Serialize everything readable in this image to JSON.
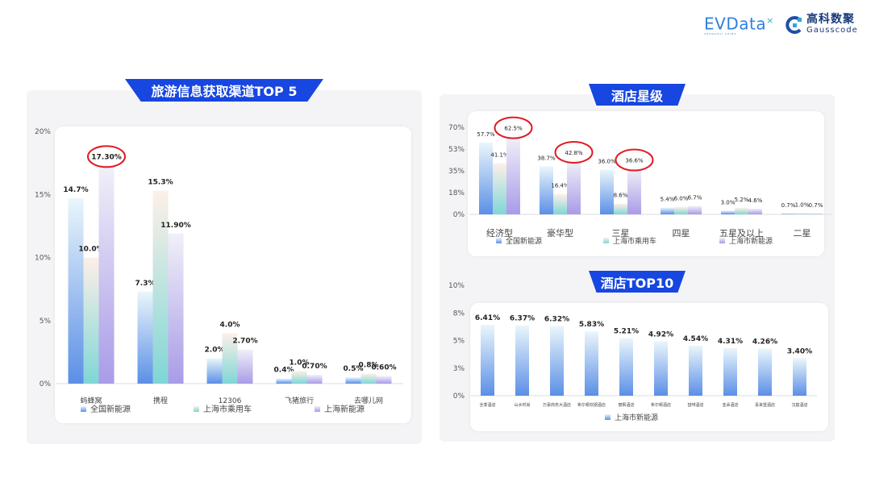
{
  "header": {
    "logo_evdata": "EVData",
    "logo_evdata_sub": "SHANGHAI CHINA",
    "logo_gauss_cn": "高科数聚",
    "logo_gauss_en": "Gausscode"
  },
  "colors": {
    "banner": "#1746e0",
    "highlight": "#e01b24",
    "series": [
      "#5b8fe6",
      "#7fd6d6",
      "#a99be8"
    ]
  },
  "chart_data": [
    {
      "type": "bar",
      "title": "旅游信息获取渠道TOP 5",
      "categories": [
        "蚂蜂窝",
        "携程",
        "12306",
        "飞猪旅行",
        "去哪儿网"
      ],
      "ylim": [
        0,
        20
      ],
      "yticks": [
        0,
        5,
        10,
        15,
        20
      ],
      "ytick_labels": [
        "0%",
        "5%",
        "10%",
        "15%",
        "20%"
      ],
      "legend": "bottom",
      "series": [
        {
          "name": "全国新能源",
          "values": [
            14.7,
            7.3,
            2.0,
            0.4,
            0.5
          ],
          "labels": [
            "14.7%",
            "7.3%",
            "2.0%",
            "0.4%",
            "0.5%"
          ]
        },
        {
          "name": "上海市乘用车",
          "values": [
            10.0,
            15.3,
            4.0,
            1.0,
            0.8
          ],
          "labels": [
            "10.0%",
            "15.3%",
            "4.0%",
            "1.0%",
            "0.8%"
          ]
        },
        {
          "name": "上海新能源",
          "values": [
            17.3,
            11.9,
            2.7,
            0.7,
            0.6
          ],
          "labels": [
            "17.30%",
            "11.90%",
            "2.70%",
            "0.70%",
            "0.60%"
          ]
        }
      ],
      "highlighted": [
        {
          "series": 2,
          "category": 0
        }
      ]
    },
    {
      "type": "bar",
      "title": "酒店星级",
      "categories": [
        "经济型",
        "豪华型",
        "三星",
        "四星",
        "五星及以上",
        "二星"
      ],
      "ylim": [
        0,
        70
      ],
      "yticks": [
        0,
        17.5,
        35,
        52.5,
        70
      ],
      "ytick_labels": [
        "0%",
        "18%",
        "35%",
        "53%",
        "70%"
      ],
      "legend": "bottom",
      "series": [
        {
          "name": "全国新能源",
          "values": [
            57.7,
            38.7,
            36.0,
            5.4,
            3.0,
            0.7
          ],
          "labels": [
            "57.7%",
            "38.7%",
            "36.0%",
            "5.4%",
            "3.0%",
            "0.7%"
          ]
        },
        {
          "name": "上海市乘用车",
          "values": [
            41.1,
            16.4,
            8.6,
            6.0,
            5.2,
            1.0
          ],
          "labels": [
            "41.1%",
            "16.4%",
            "8.6%",
            "6.0%",
            "5.2%",
            "1.0%"
          ]
        },
        {
          "name": "上海市新能源",
          "values": [
            62.5,
            42.8,
            36.6,
            6.7,
            4.6,
            0.7
          ],
          "labels": [
            "62.5%",
            "42.8%",
            "36.6%",
            "6.7%",
            "4.6%",
            "0.7%"
          ]
        }
      ],
      "highlighted": [
        {
          "series": 2,
          "category": 0
        },
        {
          "series": 2,
          "category": 1
        },
        {
          "series": 2,
          "category": 2
        }
      ]
    },
    {
      "type": "bar",
      "title": "酒店TOP10",
      "categories": [
        "全季酒店",
        "山水时尚",
        "万豪商务大酒店",
        "希尔顿欢朋酒店",
        "丽枫酒店",
        "希尔顿酒店",
        "喆啡酒店",
        "亚朵酒店",
        "喜来登酒店",
        "汉庭酒店"
      ],
      "ylim": [
        0,
        10
      ],
      "yticks": [
        0,
        2.5,
        5,
        7.5,
        10
      ],
      "ytick_labels": [
        "0%",
        "3%",
        "5%",
        "8%",
        "10%"
      ],
      "legend": "bottom",
      "series": [
        {
          "name": "上海市新能源",
          "values": [
            6.41,
            6.37,
            6.32,
            5.83,
            5.21,
            4.92,
            4.54,
            4.31,
            4.26,
            3.4
          ],
          "labels": [
            "6.41%",
            "6.37%",
            "6.32%",
            "5.83%",
            "5.21%",
            "4.92%",
            "4.54%",
            "4.31%",
            "4.26%",
            "3.40%"
          ]
        }
      ],
      "highlighted": []
    }
  ]
}
